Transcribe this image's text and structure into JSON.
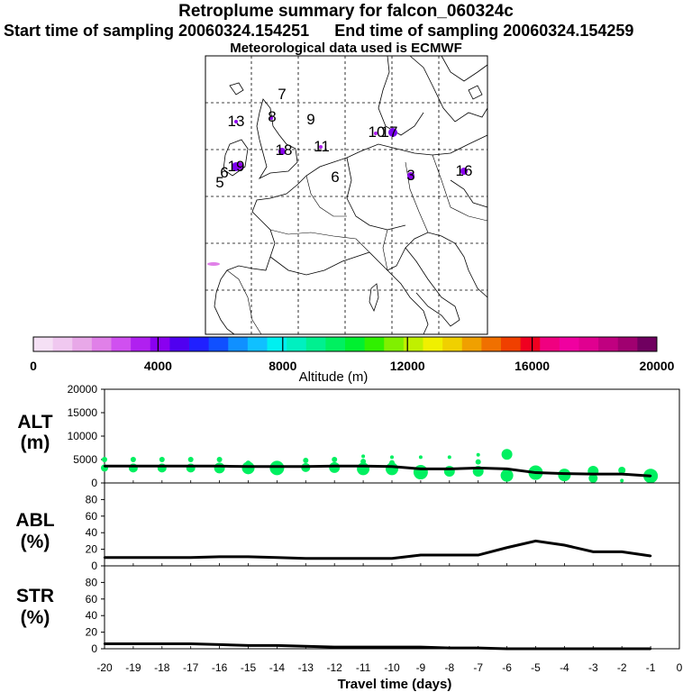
{
  "header": {
    "title": "Retroplume summary for falcon_060324c",
    "start_sampling": "Start time of sampling 20060324.154251",
    "end_sampling": "End time of sampling 20060324.154259",
    "met_data": "Meteorological data used is ECMWF"
  },
  "map": {
    "labels": [
      {
        "text": "7",
        "color": "#000000"
      },
      {
        "text": "13",
        "color": "#000000"
      },
      {
        "text": "8",
        "color": "#000000"
      },
      {
        "text": "9",
        "color": "#000000"
      },
      {
        "text": "10",
        "color": "#000000"
      },
      {
        "text": "17",
        "color": "#000000"
      },
      {
        "text": "18",
        "color": "#000000"
      },
      {
        "text": "11",
        "color": "#000000"
      },
      {
        "text": "6",
        "color": "#000000"
      },
      {
        "text": "19",
        "color": "#000000"
      },
      {
        "text": "5",
        "color": "#000000"
      },
      {
        "text": "6",
        "color": "#000000"
      },
      {
        "text": "3",
        "color": "#000000"
      },
      {
        "text": "16",
        "color": "#000000"
      }
    ],
    "colorbar": {
      "ticks": [
        "0",
        "4000",
        "8000",
        "12000",
        "16000",
        "20000"
      ],
      "label": "Altitude (m)",
      "colors": [
        "#f5e0f5",
        "#f0c8f0",
        "#e8a8e8",
        "#e080e8",
        "#d050f0",
        "#b020f0",
        "#8a00f0",
        "#5000f0",
        "#2020ff",
        "#1050ff",
        "#1090ff",
        "#10c0ff",
        "#00f0f0",
        "#00f0c0",
        "#00f090",
        "#00f060",
        "#00f030",
        "#30f000",
        "#80f000",
        "#c0f000",
        "#f0f000",
        "#f0d000",
        "#f0a000",
        "#f07000",
        "#f04000",
        "#f00020",
        "#f00080",
        "#f000a0",
        "#e00090",
        "#c00080",
        "#a00070",
        "#700060"
      ]
    }
  },
  "chart_data": [
    {
      "type": "line",
      "name": "ALT",
      "ylabel": "ALT (m)",
      "ylim": [
        0,
        20000
      ],
      "yticks": [
        0,
        5000,
        10000,
        15000,
        20000
      ],
      "x": [
        -20,
        -19,
        -18,
        -17,
        -16,
        -15,
        -14,
        -13,
        -12,
        -11,
        -10,
        -9,
        -8,
        -7,
        -6,
        -5,
        -4,
        -3,
        -2,
        -1
      ],
      "values": [
        3600,
        3600,
        3600,
        3600,
        3600,
        3500,
        3500,
        3500,
        3600,
        3600,
        3500,
        3000,
        3000,
        3200,
        3000,
        2200,
        2000,
        1900,
        1900,
        1500
      ],
      "scatter": [
        {
          "x": -20,
          "y": 5000,
          "s": 3
        },
        {
          "x": -20,
          "y": 3200,
          "s": 4
        },
        {
          "x": -19,
          "y": 5000,
          "s": 3
        },
        {
          "x": -19,
          "y": 3200,
          "s": 5
        },
        {
          "x": -18,
          "y": 5000,
          "s": 3
        },
        {
          "x": -18,
          "y": 3200,
          "s": 5
        },
        {
          "x": -17,
          "y": 5000,
          "s": 3
        },
        {
          "x": -17,
          "y": 3200,
          "s": 5
        },
        {
          "x": -16,
          "y": 5000,
          "s": 3
        },
        {
          "x": -16,
          "y": 3200,
          "s": 6
        },
        {
          "x": -15,
          "y": 4200,
          "s": 3
        },
        {
          "x": -15,
          "y": 3200,
          "s": 7
        },
        {
          "x": -14,
          "y": 3200,
          "s": 8
        },
        {
          "x": -13,
          "y": 4800,
          "s": 3
        },
        {
          "x": -13,
          "y": 3300,
          "s": 5
        },
        {
          "x": -12,
          "y": 5000,
          "s": 3
        },
        {
          "x": -12,
          "y": 3300,
          "s": 6
        },
        {
          "x": -11,
          "y": 5700,
          "s": 2
        },
        {
          "x": -11,
          "y": 4600,
          "s": 3
        },
        {
          "x": -11,
          "y": 3000,
          "s": 7
        },
        {
          "x": -10,
          "y": 5500,
          "s": 2
        },
        {
          "x": -10,
          "y": 4300,
          "s": 3
        },
        {
          "x": -10,
          "y": 3000,
          "s": 7
        },
        {
          "x": -9,
          "y": 5500,
          "s": 2
        },
        {
          "x": -9,
          "y": 2300,
          "s": 8
        },
        {
          "x": -8,
          "y": 5500,
          "s": 2
        },
        {
          "x": -8,
          "y": 2500,
          "s": 6
        },
        {
          "x": -7,
          "y": 6000,
          "s": 2
        },
        {
          "x": -7,
          "y": 4500,
          "s": 3
        },
        {
          "x": -7,
          "y": 2500,
          "s": 6
        },
        {
          "x": -6,
          "y": 6100,
          "s": 6
        },
        {
          "x": -6,
          "y": 1600,
          "s": 7
        },
        {
          "x": -5,
          "y": 2200,
          "s": 8
        },
        {
          "x": -4,
          "y": 1700,
          "s": 7
        },
        {
          "x": -3,
          "y": 2500,
          "s": 6
        },
        {
          "x": -3,
          "y": 1000,
          "s": 5
        },
        {
          "x": -2,
          "y": 2700,
          "s": 4
        },
        {
          "x": -2,
          "y": 500,
          "s": 2
        },
        {
          "x": -1,
          "y": 1500,
          "s": 8
        }
      ]
    },
    {
      "type": "line",
      "name": "ABL",
      "ylabel": "ABL (%)",
      "ylim": [
        0,
        100
      ],
      "yticks": [
        0,
        20,
        40,
        60,
        80
      ],
      "x": [
        -20,
        -19,
        -18,
        -17,
        -16,
        -15,
        -14,
        -13,
        -12,
        -11,
        -10,
        -9,
        -8,
        -7,
        -6,
        -5,
        -4,
        -3,
        -2,
        -1
      ],
      "values": [
        10,
        10,
        10,
        10,
        11,
        11,
        10,
        9,
        9,
        9,
        9,
        13,
        13,
        13,
        22,
        30,
        25,
        17,
        17,
        12
      ]
    },
    {
      "type": "line",
      "name": "STR",
      "ylabel": "STR (%)",
      "ylim": [
        0,
        100
      ],
      "yticks": [
        0,
        20,
        40,
        60,
        80
      ],
      "x": [
        -20,
        -19,
        -18,
        -17,
        -16,
        -15,
        -14,
        -13,
        -12,
        -11,
        -10,
        -9,
        -8,
        -7,
        -6,
        -5,
        -4,
        -3,
        -2,
        -1
      ],
      "values": [
        6,
        6,
        6,
        6,
        5,
        4,
        4,
        3,
        2,
        2,
        2,
        2,
        1,
        1,
        0,
        0,
        0,
        0,
        0,
        0
      ]
    }
  ],
  "xaxis": {
    "label": "Travel time (days)",
    "ticks": [
      "-20",
      "-19",
      "-18",
      "-17",
      "-16",
      "-15",
      "-14",
      "-13",
      "-12",
      "-11",
      "-10",
      "-9",
      "-8",
      "-7",
      "-6",
      "-5",
      "-4",
      "-3",
      "-2",
      "-1",
      "0"
    ]
  },
  "panel_labels": {
    "alt": [
      "ALT",
      "(m)"
    ],
    "abl": [
      "ABL",
      "(%)"
    ],
    "str": [
      "STR",
      "(%)"
    ]
  }
}
